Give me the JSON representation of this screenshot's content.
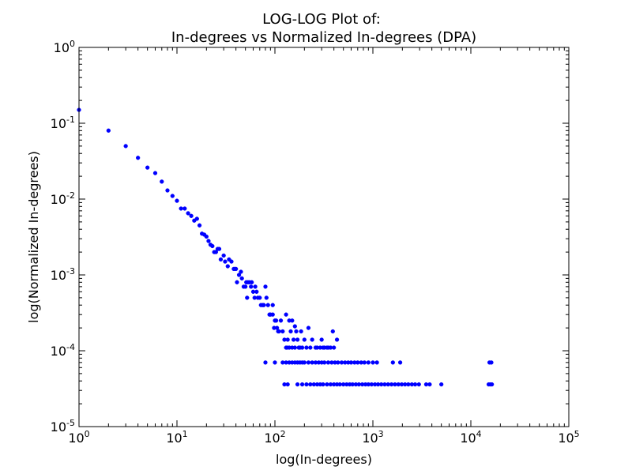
{
  "chart_data": {
    "type": "scatter",
    "title_line1": "LOG-LOG Plot of:",
    "title_line2": "In-degrees vs Normalized In-degrees (DPA)",
    "xlabel": "log(In-degrees)",
    "ylabel": "log(Normalized In-degrees)",
    "xscale": "log",
    "yscale": "log",
    "xlim": [
      1,
      100000
    ],
    "ylim": [
      1e-05,
      1
    ],
    "x_ticks": [
      {
        "value": 1,
        "base": "10",
        "exp": "0"
      },
      {
        "value": 10,
        "base": "10",
        "exp": "1"
      },
      {
        "value": 100,
        "base": "10",
        "exp": "2"
      },
      {
        "value": 1000,
        "base": "10",
        "exp": "3"
      },
      {
        "value": 10000,
        "base": "10",
        "exp": "4"
      },
      {
        "value": 100000,
        "base": "10",
        "exp": "5"
      }
    ],
    "y_ticks": [
      {
        "value": 1,
        "base": "10",
        "exp": "0"
      },
      {
        "value": 0.1,
        "base": "10",
        "exp": "-1"
      },
      {
        "value": 0.01,
        "base": "10",
        "exp": "-2"
      },
      {
        "value": 0.001,
        "base": "10",
        "exp": "-3"
      },
      {
        "value": 0.0001,
        "base": "10",
        "exp": "-4"
      },
      {
        "value": 1e-05,
        "base": "10",
        "exp": "-5"
      }
    ],
    "marker_color": "#0000ff",
    "grid": false,
    "series": [
      {
        "values": [
          [
            1,
            0.15
          ],
          [
            2,
            0.08
          ],
          [
            3,
            0.05
          ],
          [
            4,
            0.035
          ],
          [
            5,
            0.026
          ],
          [
            6,
            0.022
          ],
          [
            7,
            0.017
          ],
          [
            8,
            0.013
          ],
          [
            9,
            0.011
          ],
          [
            10,
            0.0095
          ],
          [
            11,
            0.0075
          ],
          [
            12,
            0.0075
          ],
          [
            13,
            0.0065
          ],
          [
            14,
            0.006
          ],
          [
            15,
            0.0052
          ],
          [
            16,
            0.0055
          ],
          [
            17,
            0.0045
          ],
          [
            18,
            0.0035
          ],
          [
            19,
            0.0034
          ],
          [
            20,
            0.0032
          ],
          [
            21,
            0.0028
          ],
          [
            22,
            0.0025
          ],
          [
            23,
            0.0024
          ],
          [
            24,
            0.002
          ],
          [
            25,
            0.002
          ],
          [
            26,
            0.0022
          ],
          [
            27,
            0.0022
          ],
          [
            28,
            0.0016
          ],
          [
            30,
            0.0018
          ],
          [
            31,
            0.0015
          ],
          [
            33,
            0.0013
          ],
          [
            34,
            0.0016
          ],
          [
            36,
            0.0015
          ],
          [
            38,
            0.0012
          ],
          [
            39,
            0.0012
          ],
          [
            40,
            0.0012
          ],
          [
            41,
            0.0008
          ],
          [
            43,
            0.001
          ],
          [
            45,
            0.0011
          ],
          [
            46,
            0.0009
          ],
          [
            48,
            0.0007
          ],
          [
            50,
            0.0007
          ],
          [
            51,
            0.0008
          ],
          [
            52,
            0.0005
          ],
          [
            53,
            0.0008
          ],
          [
            55,
            0.0008
          ],
          [
            57,
            0.0007
          ],
          [
            58,
            0.0008
          ],
          [
            60,
            0.0006
          ],
          [
            62,
            0.0005
          ],
          [
            63,
            0.0007
          ],
          [
            65,
            0.0006
          ],
          [
            67,
            0.0005
          ],
          [
            70,
            0.0005
          ],
          [
            72,
            0.0004
          ],
          [
            75,
            0.0004
          ],
          [
            77,
            0.0004
          ],
          [
            80,
            0.0007
          ],
          [
            82,
            0.0005
          ],
          [
            85,
            0.0004
          ],
          [
            88,
            0.0003
          ],
          [
            90,
            0.0003
          ],
          [
            95,
            0.0004
          ],
          [
            80,
            7e-05
          ],
          [
            100,
            7e-05
          ],
          [
            95,
            0.0003
          ],
          [
            98,
            0.0002
          ],
          [
            100,
            0.00025
          ],
          [
            103,
            0.00025
          ],
          [
            105,
            0.0002
          ],
          [
            108,
            0.00018
          ],
          [
            110,
            0.00018
          ],
          [
            115,
            0.00025
          ],
          [
            120,
            0.00018
          ],
          [
            125,
            0.00014
          ],
          [
            130,
            0.0003
          ],
          [
            133,
            0.00011
          ],
          [
            135,
            0.00014
          ],
          [
            140,
            0.00025
          ],
          [
            145,
            0.00018
          ],
          [
            150,
            0.00025
          ],
          [
            155,
            0.00014
          ],
          [
            160,
            0.00021
          ],
          [
            165,
            0.00018
          ],
          [
            170,
            0.00014
          ],
          [
            175,
            0.00011
          ],
          [
            185,
            0.00018
          ],
          [
            200,
            0.00014
          ],
          [
            220,
            0.0002
          ],
          [
            240,
            0.00014
          ],
          [
            270,
            0.00011
          ],
          [
            300,
            0.00014
          ],
          [
            320,
            0.00011
          ],
          [
            340,
            0.00011
          ],
          [
            400,
            0.00011
          ],
          [
            430,
            0.00014
          ],
          [
            390,
            0.00018
          ],
          [
            130,
            0.00011
          ],
          [
            140,
            0.00011
          ],
          [
            150,
            0.00011
          ],
          [
            160,
            0.00011
          ],
          [
            180,
            0.00011
          ],
          [
            190,
            0.00011
          ],
          [
            210,
            0.00011
          ],
          [
            230,
            0.00011
          ],
          [
            260,
            0.00011
          ],
          [
            290,
            0.00011
          ],
          [
            310,
            0.00011
          ],
          [
            350,
            0.00011
          ],
          [
            370,
            0.00011
          ],
          [
            120,
            7e-05
          ],
          [
            130,
            7e-05
          ],
          [
            140,
            7e-05
          ],
          [
            150,
            7e-05
          ],
          [
            160,
            7e-05
          ],
          [
            170,
            7e-05
          ],
          [
            180,
            7e-05
          ],
          [
            190,
            7e-05
          ],
          [
            200,
            7e-05
          ],
          [
            220,
            7e-05
          ],
          [
            240,
            7e-05
          ],
          [
            260,
            7e-05
          ],
          [
            280,
            7e-05
          ],
          [
            300,
            7e-05
          ],
          [
            320,
            7e-05
          ],
          [
            350,
            7e-05
          ],
          [
            380,
            7e-05
          ],
          [
            410,
            7e-05
          ],
          [
            440,
            7e-05
          ],
          [
            480,
            7e-05
          ],
          [
            520,
            7e-05
          ],
          [
            560,
            7e-05
          ],
          [
            600,
            7e-05
          ],
          [
            650,
            7e-05
          ],
          [
            700,
            7e-05
          ],
          [
            760,
            7e-05
          ],
          [
            820,
            7e-05
          ],
          [
            900,
            7e-05
          ],
          [
            1000,
            7e-05
          ],
          [
            1100,
            7e-05
          ],
          [
            1600,
            7e-05
          ],
          [
            1900,
            7e-05
          ],
          [
            15500,
            7e-05
          ],
          [
            16200,
            7e-05
          ],
          [
            125,
            3.6e-05
          ],
          [
            135,
            3.6e-05
          ],
          [
            170,
            3.6e-05
          ],
          [
            190,
            3.6e-05
          ],
          [
            210,
            3.6e-05
          ],
          [
            230,
            3.6e-05
          ],
          [
            250,
            3.6e-05
          ],
          [
            270,
            3.6e-05
          ],
          [
            290,
            3.6e-05
          ],
          [
            310,
            3.6e-05
          ],
          [
            340,
            3.6e-05
          ],
          [
            370,
            3.6e-05
          ],
          [
            400,
            3.6e-05
          ],
          [
            430,
            3.6e-05
          ],
          [
            460,
            3.6e-05
          ],
          [
            500,
            3.6e-05
          ],
          [
            540,
            3.6e-05
          ],
          [
            580,
            3.6e-05
          ],
          [
            620,
            3.6e-05
          ],
          [
            670,
            3.6e-05
          ],
          [
            720,
            3.6e-05
          ],
          [
            780,
            3.6e-05
          ],
          [
            840,
            3.6e-05
          ],
          [
            900,
            3.6e-05
          ],
          [
            970,
            3.6e-05
          ],
          [
            1050,
            3.6e-05
          ],
          [
            1130,
            3.6e-05
          ],
          [
            1220,
            3.6e-05
          ],
          [
            1320,
            3.6e-05
          ],
          [
            1430,
            3.6e-05
          ],
          [
            1550,
            3.6e-05
          ],
          [
            1680,
            3.6e-05
          ],
          [
            1820,
            3.6e-05
          ],
          [
            1970,
            3.6e-05
          ],
          [
            2130,
            3.6e-05
          ],
          [
            2300,
            3.6e-05
          ],
          [
            2500,
            3.6e-05
          ],
          [
            2700,
            3.6e-05
          ],
          [
            2950,
            3.6e-05
          ],
          [
            3500,
            3.6e-05
          ],
          [
            3800,
            3.6e-05
          ],
          [
            5000,
            3.6e-05
          ],
          [
            15200,
            3.6e-05
          ],
          [
            15800,
            3.6e-05
          ],
          [
            16400,
            3.6e-05
          ]
        ]
      }
    ]
  }
}
